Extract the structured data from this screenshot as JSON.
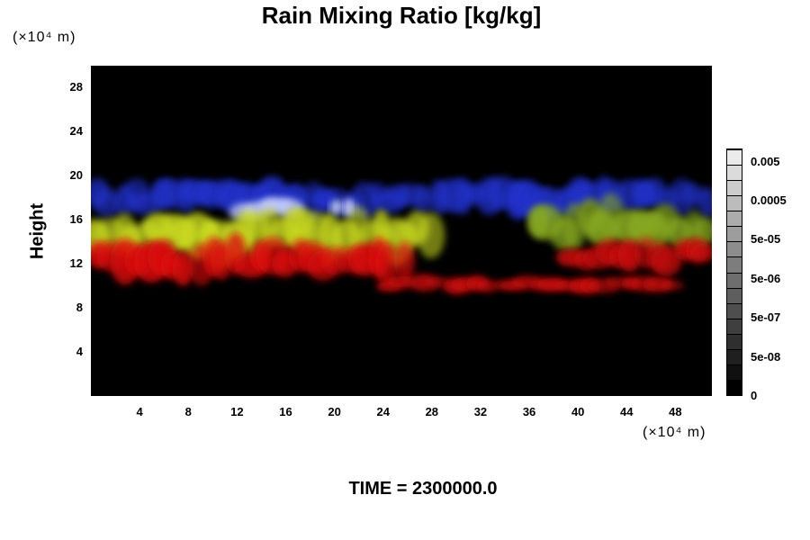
{
  "chart_data": {
    "type": "heatmap",
    "title": "Rain Mixing Ratio [kg/kg]",
    "ylabel": "Height",
    "yunit": "(×10⁴ m)",
    "xunit": "(×10⁴ m)",
    "xlim": [
      0,
      51
    ],
    "ylim": [
      0,
      30
    ],
    "xticks": [
      "4",
      "8",
      "12",
      "16",
      "20",
      "24",
      "28",
      "32",
      "36",
      "40",
      "44",
      "48"
    ],
    "yticks": [
      "4",
      "8",
      "12",
      "16",
      "20",
      "24",
      "28"
    ],
    "colorbar": {
      "labels": [
        "0.005",
        "0.0005",
        "5e-05",
        "5e-06",
        "5e-07",
        "5e-08",
        "0"
      ],
      "levels": 16,
      "colors": [
        "#000000",
        "#ffffff"
      ]
    },
    "background_color": "#000000",
    "features": [
      {
        "color": "#2233cc",
        "layer": "blue band",
        "x": [
          0,
          51
        ],
        "y": [
          16.5,
          19.5
        ]
      },
      {
        "color": "#c8d0ff",
        "layer": "light blue",
        "x": [
          12,
          17
        ],
        "y": [
          16,
          18
        ]
      },
      {
        "color": "#c8d0ff",
        "layer": "light blue",
        "x": [
          20,
          21.5
        ],
        "y": [
          16.5,
          18
        ]
      },
      {
        "color": "#ccdd22",
        "layer": "yellow-green",
        "x": [
          0,
          28.5
        ],
        "y": [
          12.5,
          16.5
        ]
      },
      {
        "color": "#88aa22",
        "layer": "yellow-green",
        "x": [
          36,
          51
        ],
        "y": [
          13.5,
          17.5
        ]
      },
      {
        "color": "#dd1111",
        "layer": "red",
        "x": [
          0,
          26
        ],
        "y": [
          10.5,
          14
        ]
      },
      {
        "color": "#cc1111",
        "layer": "red",
        "x": [
          24,
          48
        ],
        "y": [
          9.5,
          10.8
        ]
      },
      {
        "color": "#cc1111",
        "layer": "red",
        "x": [
          39,
          51
        ],
        "y": [
          11.5,
          14
        ]
      }
    ]
  },
  "time_label": "TIME = 2300000.0"
}
